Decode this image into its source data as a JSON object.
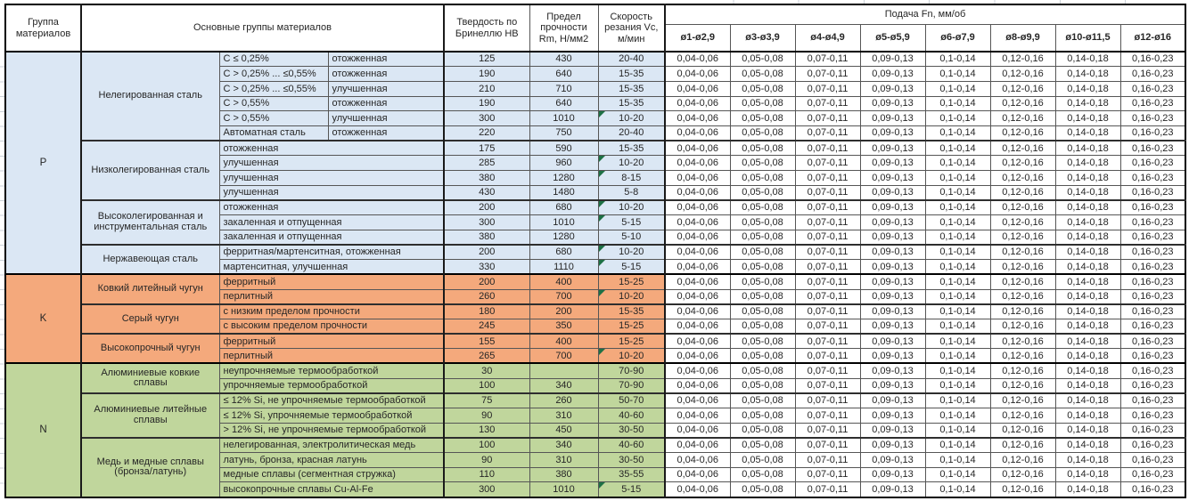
{
  "colors": {
    "steel_band": "#dbe7f4",
    "cast_iron_band": "#f4a97c",
    "non_ferrous_band": "#c0d69c",
    "flag_triangle": "#1e7145"
  },
  "header": {
    "col_group": "Группа материалов",
    "col_main": "Основные группы материалов",
    "col_hb": "Твердость по Бринеллю HB",
    "col_rm": "Предел прочности Rm, Н/мм2",
    "col_vc": "Скорость резания Vc, м/мин",
    "col_feed": "Подача Fn, мм/об",
    "feed_cols": [
      "ø1-ø2,9",
      "ø3-ø3,9",
      "ø4-ø4,9",
      "ø5-ø5,9",
      "ø6-ø7,9",
      "ø8-ø9,9",
      "ø10-ø11,5",
      "ø12-ø16"
    ]
  },
  "feed_values": [
    "0,04-0,06",
    "0,05-0,08",
    "0,07-0,11",
    "0,09-0,13",
    "0,1-0,14",
    "0,12-0,16",
    "0,14-0,18",
    "0,16-0,23"
  ],
  "groups": [
    {
      "code": "P",
      "color_key": "steel_band",
      "subgroups": [
        {
          "name": "Нелегированная сталь",
          "rows": [
            {
              "c1": "C ≤ 0,25%",
              "c2": "отожженная",
              "hb": "125",
              "rm": "430",
              "vc": "20-40",
              "flag": false
            },
            {
              "c1": "C > 0,25% ... ≤0,55%",
              "c2": "отожженная",
              "hb": "190",
              "rm": "640",
              "vc": "15-35",
              "flag": false
            },
            {
              "c1": "C > 0,25% ... ≤0,55%",
              "c2": "улучшенная",
              "hb": "210",
              "rm": "710",
              "vc": "15-35",
              "flag": false
            },
            {
              "c1": "C > 0,55%",
              "c2": "отожженная",
              "hb": "190",
              "rm": "640",
              "vc": "15-35",
              "flag": false
            },
            {
              "c1": "C > 0,55%",
              "c2": "улучшенная",
              "hb": "300",
              "rm": "1010",
              "vc": "10-20",
              "flag": true
            },
            {
              "c1": "Автоматная сталь",
              "c2": "отожженная",
              "hb": "220",
              "rm": "750",
              "vc": "20-40",
              "flag": false
            }
          ]
        },
        {
          "name": "Низколегированная сталь",
          "rows": [
            {
              "desc": "отожженная",
              "hb": "175",
              "rm": "590",
              "vc": "15-35",
              "flag": false
            },
            {
              "desc": "улучшенная",
              "hb": "285",
              "rm": "960",
              "vc": "10-20",
              "flag": true
            },
            {
              "desc": "улучшенная",
              "hb": "380",
              "rm": "1280",
              "vc": "8-15",
              "flag": true
            },
            {
              "desc": "улучшенная",
              "hb": "430",
              "rm": "1480",
              "vc": "5-8",
              "flag": false
            }
          ]
        },
        {
          "name": "Высоколегированная и инструментальная сталь",
          "rows": [
            {
              "desc": "отожженная",
              "hb": "200",
              "rm": "680",
              "vc": "10-20",
              "flag": true
            },
            {
              "desc": "закаленная и отпущенная",
              "hb": "300",
              "rm": "1010",
              "vc": "5-15",
              "flag": true
            },
            {
              "desc": "закаленная и отпущенная",
              "hb": "380",
              "rm": "1280",
              "vc": "5-10",
              "flag": false
            }
          ]
        },
        {
          "name": "Нержавеющая сталь",
          "rows": [
            {
              "desc": "ферритная/мартенситная, отожженная",
              "hb": "200",
              "rm": "680",
              "vc": "10-20",
              "flag": true
            },
            {
              "desc": "мартенситная, улучшенная",
              "hb": "330",
              "rm": "1110",
              "vc": "5-15",
              "flag": true
            }
          ]
        }
      ]
    },
    {
      "code": "K",
      "color_key": "cast_iron_band",
      "subgroups": [
        {
          "name": "Ковкий литейный чугун",
          "rows": [
            {
              "desc": "ферритный",
              "hb": "200",
              "rm": "400",
              "vc": "15-25",
              "flag": false
            },
            {
              "desc": "перлитный",
              "hb": "260",
              "rm": "700",
              "vc": "10-20",
              "flag": true
            }
          ]
        },
        {
          "name": "Серый чугун",
          "rows": [
            {
              "desc": "с низким пределом прочности",
              "hb": "180",
              "rm": "200",
              "vc": "15-35",
              "flag": false
            },
            {
              "desc": "с высоким пределом прочности",
              "hb": "245",
              "rm": "350",
              "vc": "15-25",
              "flag": false
            }
          ]
        },
        {
          "name": "Высокопрочный чугун",
          "rows": [
            {
              "desc": "ферритный",
              "hb": "155",
              "rm": "400",
              "vc": "15-25",
              "flag": false
            },
            {
              "desc": "перлитный",
              "hb": "265",
              "rm": "700",
              "vc": "10-20",
              "flag": true
            }
          ]
        }
      ]
    },
    {
      "code": "N",
      "color_key": "non_ferrous_band",
      "subgroups": [
        {
          "name": "Алюминиевые ковкие сплавы",
          "rows": [
            {
              "desc": "неупрочняемые термообработкой",
              "hb": "30",
              "rm": "",
              "vc": "70-90",
              "flag": false
            },
            {
              "desc": "упрочняемые термообработкой",
              "hb": "100",
              "rm": "340",
              "vc": "70-90",
              "flag": false
            }
          ]
        },
        {
          "name": "Алюминиевые литейные сплавы",
          "rows": [
            {
              "desc": "≤ 12% Si, не упрочняемые термообработкой",
              "hb": "75",
              "rm": "260",
              "vc": "50-70",
              "flag": false
            },
            {
              "desc": "≤ 12% Si, упрочняемые термообработкой",
              "hb": "90",
              "rm": "310",
              "vc": "40-60",
              "flag": false
            },
            {
              "desc": "> 12% Si, не упрочняемые термообработкой",
              "hb": "130",
              "rm": "450",
              "vc": "30-50",
              "flag": false
            }
          ]
        },
        {
          "name": "Медь и медные сплавы (бронза/латунь)",
          "rows": [
            {
              "desc": "нелегированная, электролитическая медь",
              "hb": "100",
              "rm": "340",
              "vc": "40-60",
              "flag": false
            },
            {
              "desc": "латунь, бронза, красная латунь",
              "hb": "90",
              "rm": "310",
              "vc": "30-50",
              "flag": false
            },
            {
              "desc": "медные сплавы (сегментная стружка)",
              "hb": "110",
              "rm": "380",
              "vc": "35-55",
              "flag": false
            },
            {
              "desc": "высокопрочные сплавы Cu-Al-Fe",
              "hb": "300",
              "rm": "1010",
              "vc": "5-15",
              "flag": true
            }
          ]
        }
      ]
    }
  ]
}
